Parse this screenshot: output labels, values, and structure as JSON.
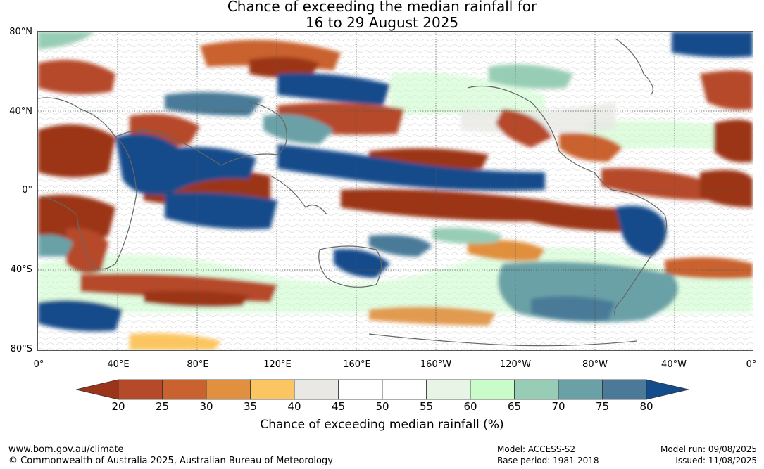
{
  "title": {
    "line1": "Chance of exceeding the median rainfall for",
    "line2": "16 to 29 August 2025"
  },
  "map": {
    "lat_labels": [
      "80°N",
      "40°N",
      "0°",
      "40°S",
      "80°S"
    ],
    "lon_labels": [
      "0°",
      "40°E",
      "80°E",
      "120°E",
      "160°E",
      "160°W",
      "120°W",
      "80°W",
      "40°W",
      "0°"
    ]
  },
  "colorbar": {
    "title": "Chance of exceeding median rainfall (%)",
    "ticks": [
      "20",
      "25",
      "30",
      "35",
      "40",
      "45",
      "50",
      "55",
      "60",
      "65",
      "70",
      "75",
      "80"
    ],
    "colors": [
      "#9c3419",
      "#b5492a",
      "#c9622e",
      "#e0903e",
      "#fbc662",
      "#e9e8e5",
      "#ffffff",
      "#ffffff",
      "#e7f4e6",
      "#c9fcc8",
      "#98cdb5",
      "#6aa1a7",
      "#4a7a98",
      "#124c8b"
    ]
  },
  "footer": {
    "url": "www.bom.gov.au/climate",
    "copyright": "© Commonwealth of Australia 2025, Australian Bureau of Meteorology",
    "model": "Model: ACCESS-S2",
    "base_period": "Base period: 1981-2018",
    "model_run": "Model run: 09/08/2025",
    "issued": "Issued: 11/08/2025"
  }
}
